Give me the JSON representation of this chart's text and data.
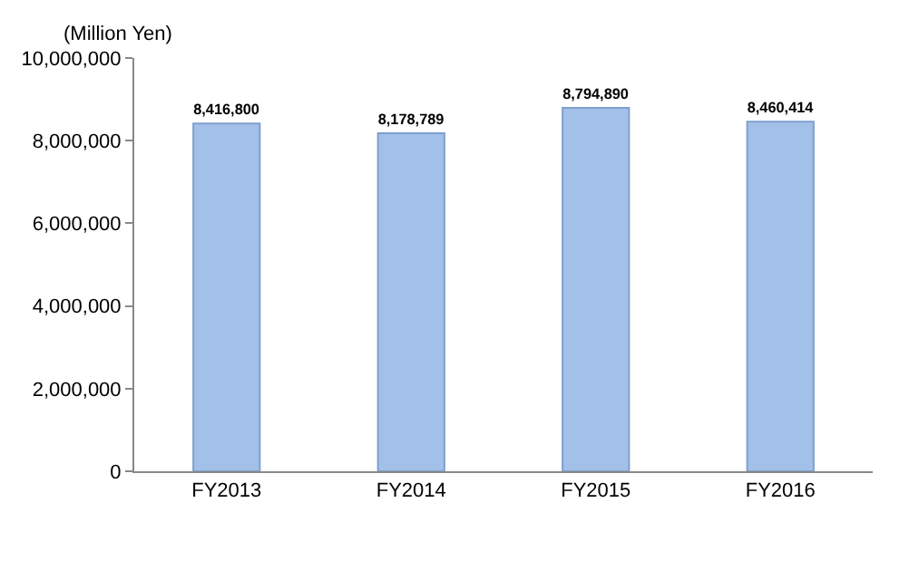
{
  "chart_data": {
    "type": "bar",
    "ylabel": "(Million Yen)",
    "categories": [
      "FY2013",
      "FY2014",
      "FY2015",
      "FY2016"
    ],
    "values": [
      8416800,
      8178789,
      8794890,
      8460414
    ],
    "value_labels": [
      "8,416,800",
      "8,178,789",
      "8,794,890",
      "8,460,414"
    ],
    "color": "#a3c1e8",
    "ylim": [
      0,
      10000000
    ],
    "yticks": [
      0,
      {
        "value": 2000000,
        "label": "2,000,000"
      },
      {
        "value": 4000000,
        "label": "4,000,000"
      },
      {
        "value": 6000000,
        "label": "6,000,000"
      },
      {
        "value": 8000000,
        "label": "8,000,000"
      },
      {
        "value": 10000000,
        "label": "10,000,000"
      }
    ]
  }
}
